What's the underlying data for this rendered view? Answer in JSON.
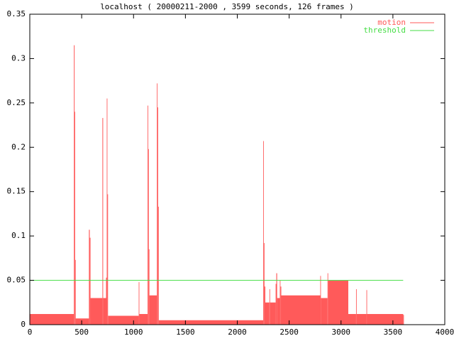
{
  "chart_data": {
    "type": "bar",
    "title": "localhost ( 20000211-2000 , 3599 seconds, 126 frames )",
    "xlim": [
      0,
      4000
    ],
    "xticks": [
      0,
      500,
      1000,
      1500,
      2000,
      2500,
      3000,
      3500,
      4000
    ],
    "ylim": [
      0,
      0.35
    ],
    "yticks": [
      0,
      0.05,
      0.1,
      0.15,
      0.2,
      0.25,
      0.3,
      0.35
    ],
    "legend": "top-right",
    "series": [
      {
        "name": "motion",
        "color": "#ff5a5a",
        "x": [
          0,
          425,
          432,
          437,
          442,
          570,
          578,
          585,
          700,
          707,
          735,
          742,
          748,
          754,
          1050,
          1056,
          1135,
          1141,
          1147,
          1153,
          1225,
          1231,
          1237,
          1243,
          2250,
          2256,
          2262,
          2270,
          2310,
          2316,
          2370,
          2376,
          2384,
          2410,
          2416,
          2424,
          2800,
          2806,
          2870,
          2876,
          3070,
          3145,
          3151,
          3245,
          3251,
          3599
        ],
        "values": [
          0.012,
          0.315,
          0.24,
          0.073,
          0.007,
          0.107,
          0.098,
          0.03,
          0.233,
          0.03,
          0.053,
          0.255,
          0.147,
          0.01,
          0.048,
          0.012,
          0.247,
          0.198,
          0.085,
          0.033,
          0.272,
          0.245,
          0.133,
          0.005,
          0.207,
          0.092,
          0.043,
          0.025,
          0.04,
          0.025,
          0.046,
          0.058,
          0.03,
          0.05,
          0.043,
          0.033,
          0.055,
          0.03,
          0.058,
          0.05,
          0.012,
          0.04,
          0.012,
          0.039,
          0.012,
          0.011
        ]
      },
      {
        "name": "threshold",
        "color": "#44dd44",
        "x": [
          0,
          3599
        ],
        "values": [
          0.05,
          0.05
        ]
      }
    ]
  }
}
